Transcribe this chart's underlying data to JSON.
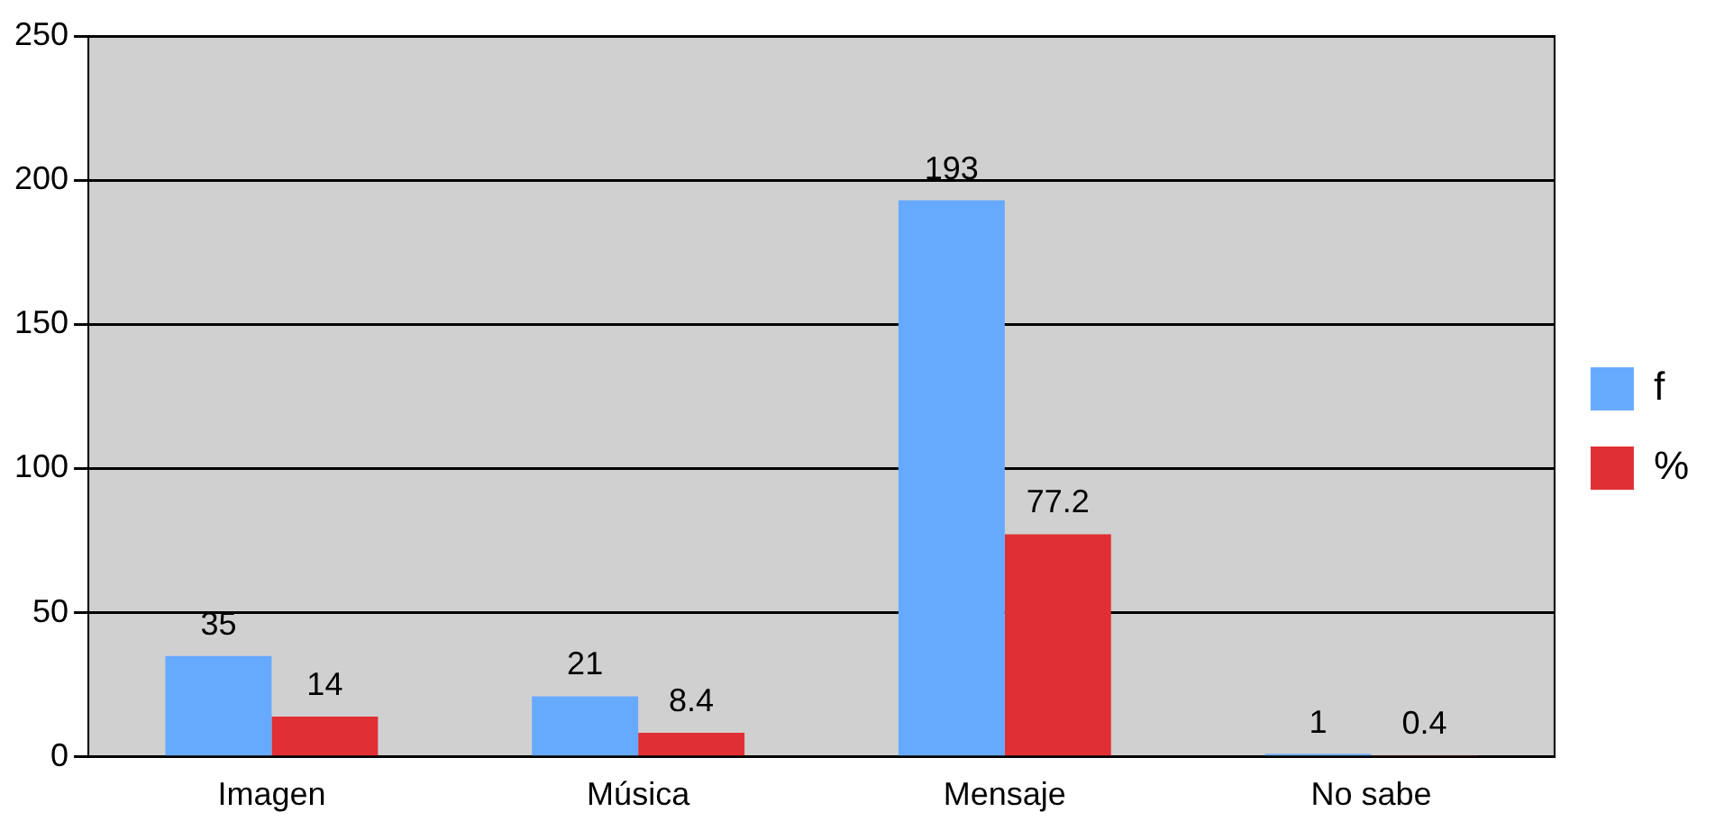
{
  "chart_data": {
    "type": "bar",
    "categories": [
      "Imagen",
      "Música",
      "Mensaje",
      "No sabe"
    ],
    "series": [
      {
        "name": "f",
        "color": "#66aaff",
        "values": [
          35,
          21,
          193,
          1
        ]
      },
      {
        "name": "%",
        "color": "#e03035",
        "values": [
          14,
          8.4,
          77.2,
          0.4
        ]
      }
    ],
    "ylim": [
      0,
      250
    ],
    "yticks": [
      0,
      50,
      100,
      150,
      200,
      250
    ],
    "grid": "y",
    "legend": "right",
    "data_labels": true
  }
}
